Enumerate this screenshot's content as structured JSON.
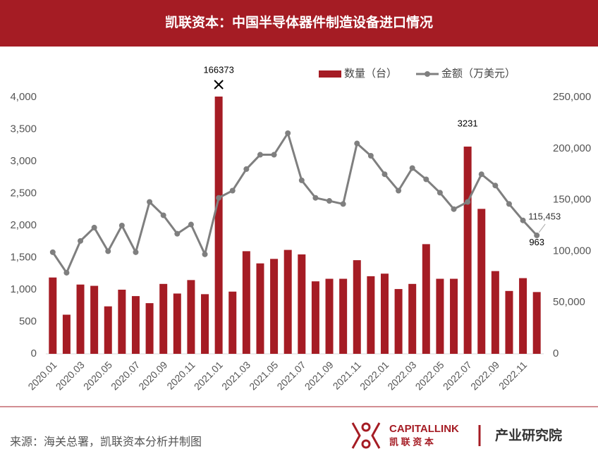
{
  "chart_data": {
    "type": "bar-line",
    "title": "凯联资本：中国半导体器件制造设备进口情况",
    "categories": [
      "2020.01",
      null,
      "2020.03",
      null,
      "2020.05",
      null,
      "2020.07",
      null,
      "2020.09",
      null,
      "2020.11",
      null,
      "2021.01",
      null,
      "2021.03",
      null,
      "2021.05",
      null,
      "2021.07",
      null,
      "2021.09",
      null,
      "2021.11",
      null,
      "2022.01",
      null,
      "2022.03",
      null,
      "2022.05",
      null,
      "2022.07",
      null,
      "2022.09",
      null,
      "2022.11",
      null
    ],
    "series": [
      {
        "name": "数量（台）",
        "type": "bar",
        "color": "#a51c24",
        "values": [
          1190,
          610,
          1080,
          1060,
          740,
          1000,
          900,
          790,
          1090,
          940,
          1150,
          930,
          166373,
          970,
          1600,
          1410,
          1480,
          1620,
          1550,
          1130,
          1170,
          1170,
          1460,
          1210,
          1250,
          1010,
          1090,
          1710,
          1170,
          1170,
          3231,
          2260,
          1290,
          980,
          1180,
          963
        ],
        "value_labels": [
          null,
          null,
          null,
          null,
          null,
          null,
          null,
          null,
          null,
          null,
          null,
          null,
          "166373",
          null,
          null,
          null,
          null,
          null,
          null,
          null,
          null,
          null,
          null,
          null,
          null,
          null,
          null,
          null,
          null,
          null,
          "3231",
          null,
          null,
          null,
          null,
          "963"
        ]
      },
      {
        "name": "金额（万美元）",
        "type": "line",
        "axis": "y2",
        "color": "#7f7f7f",
        "values": [
          99000,
          79000,
          110000,
          123000,
          100000,
          125000,
          99000,
          148000,
          135000,
          117000,
          126000,
          97000,
          152000,
          159000,
          180000,
          194000,
          194000,
          215000,
          169000,
          152000,
          149000,
          146000,
          205000,
          193000,
          175000,
          159000,
          181000,
          170000,
          157000,
          141000,
          148000,
          175000,
          164000,
          146000,
          130000,
          115453
        ],
        "value_labels": [
          null,
          null,
          null,
          null,
          null,
          null,
          null,
          null,
          null,
          null,
          null,
          null,
          null,
          null,
          null,
          null,
          null,
          null,
          null,
          null,
          null,
          null,
          null,
          null,
          null,
          null,
          null,
          null,
          null,
          null,
          null,
          null,
          null,
          null,
          null,
          "115,453"
        ]
      }
    ],
    "ylim": [
      0,
      4000
    ],
    "yticks": [
      0,
      500,
      {
        "value": 1000,
        "label": "1,000"
      },
      {
        "value": 1500,
        "label": "1,500"
      },
      {
        "value": 2000,
        "label": "2,000"
      },
      {
        "value": 2500,
        "label": "2,500"
      },
      {
        "value": 3000,
        "label": "3,000"
      },
      {
        "value": 3500,
        "label": "3,500"
      },
      {
        "value": 4000,
        "label": "4,000"
      }
    ],
    "y2lim": [
      0,
      250000
    ],
    "y2ticks": [
      0,
      {
        "value": 50000,
        "label": "50,000"
      },
      {
        "value": 100000,
        "label": "100,000"
      },
      {
        "value": 150000,
        "label": "150,000"
      },
      {
        "value": 200000,
        "label": "200,000"
      },
      {
        "value": 250000,
        "label": "250,000"
      }
    ],
    "grid": false,
    "legend": "top"
  },
  "footer": {
    "source": "来源：海关总署，凯联资本分析并制图",
    "brand": "CAPITALLINK",
    "brand_cn": "凯 联 资 本",
    "institute": "产业研究院"
  }
}
